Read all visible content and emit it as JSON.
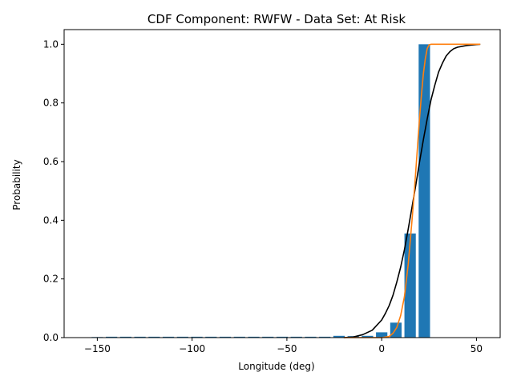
{
  "chart_data": {
    "type": "bar",
    "title": "CDF Component: RWFW - Data Set: At Risk",
    "xlabel": "Longitude (deg)",
    "ylabel": "Probability",
    "xlim": [
      -167.5,
      62.5
    ],
    "ylim": [
      0,
      1.05
    ],
    "xticks": [
      -150,
      -100,
      -50,
      0,
      50
    ],
    "xtick_labels": [
      "−150",
      "−100",
      "−50",
      "0",
      "50"
    ],
    "yticks": [
      0,
      0.2,
      0.4,
      0.6,
      0.8,
      1.0
    ],
    "ytick_labels": [
      "0.0",
      "0.2",
      "0.4",
      "0.6",
      "0.8",
      "1.0"
    ],
    "grid": false,
    "legend": "none",
    "bar_width": 6,
    "bar_color": "#1f77b4",
    "bars": {
      "x": [
        -157.5,
        -150,
        -142.5,
        -135,
        -127.5,
        -120,
        -112.5,
        -105,
        -97.5,
        -90,
        -82.5,
        -75,
        -67.5,
        -60,
        -52.5,
        -45,
        -37.5,
        -30,
        -22.5,
        -15,
        -7.5,
        0,
        7.5,
        15,
        22.5
      ],
      "values": [
        0.001,
        0.002,
        0.003,
        0.003,
        0.003,
        0.003,
        0.003,
        0.003,
        0.003,
        0.003,
        0.003,
        0.003,
        0.003,
        0.003,
        0.003,
        0.003,
        0.003,
        0.003,
        0.006,
        0.005,
        0.006,
        0.018,
        0.051,
        0.355,
        1.0
      ]
    },
    "lines": [
      {
        "color": "#000000",
        "x": [
          -20,
          -15,
          -10,
          -5,
          0,
          2,
          4,
          6,
          8,
          10,
          12,
          14,
          16,
          18,
          20,
          22,
          24,
          26,
          28,
          30,
          32,
          34,
          36,
          38,
          40,
          45,
          50,
          52
        ],
        "values": [
          0.0,
          0.002,
          0.01,
          0.025,
          0.06,
          0.083,
          0.11,
          0.145,
          0.19,
          0.24,
          0.3,
          0.37,
          0.445,
          0.52,
          0.6,
          0.675,
          0.745,
          0.81,
          0.86,
          0.905,
          0.935,
          0.96,
          0.975,
          0.985,
          0.99,
          0.996,
          0.999,
          1.0
        ]
      },
      {
        "color": "#ff7f0e",
        "x": [
          -20,
          -10,
          0,
          4,
          6,
          8,
          10,
          12,
          14,
          16,
          17,
          18,
          19,
          20,
          21,
          22,
          23,
          24,
          25,
          26,
          30,
          40,
          52
        ],
        "values": [
          0.0,
          0.0,
          0.0,
          0.004,
          0.015,
          0.035,
          0.075,
          0.14,
          0.25,
          0.4,
          0.48,
          0.57,
          0.66,
          0.75,
          0.83,
          0.9,
          0.95,
          0.985,
          0.998,
          1.0,
          1.0,
          1.0,
          1.0
        ]
      }
    ]
  }
}
